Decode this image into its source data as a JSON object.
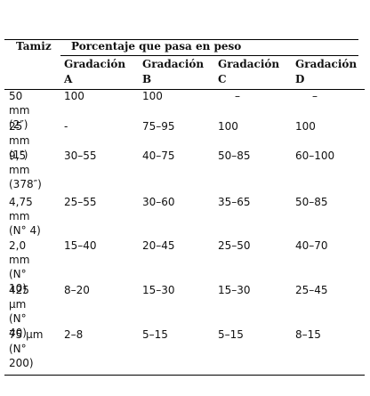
{
  "table": {
    "header": {
      "sieve": "Tamiz",
      "group": "Porcentaje que pasa en peso",
      "columns": [
        "Gradación A",
        "Gradación B",
        "Gradación C",
        "Gradación D"
      ]
    },
    "rows": [
      [
        "50 mm (2″)",
        "100",
        "100",
        "–",
        "–"
      ],
      [
        "25 mm (1″)",
        "-",
        "75–95",
        "100",
        "100"
      ],
      [
        "9,5 mm (378″)",
        "30–55",
        "40–75",
        "50–85",
        "60–100"
      ],
      [
        "4,75 mm (N° 4)",
        "25–55",
        "30–60",
        "35–65",
        "50–85"
      ],
      [
        "2,0 mm (N° 10)",
        "15–40",
        "20–45",
        "25–50",
        "40–70"
      ],
      [
        "425 µm (N° 40)",
        "8–20",
        "15–30",
        "15–30",
        "25–45"
      ],
      [
        "75 µm (N° 200)",
        "2–8",
        "5–15",
        "5–15",
        "8–15"
      ]
    ]
  }
}
